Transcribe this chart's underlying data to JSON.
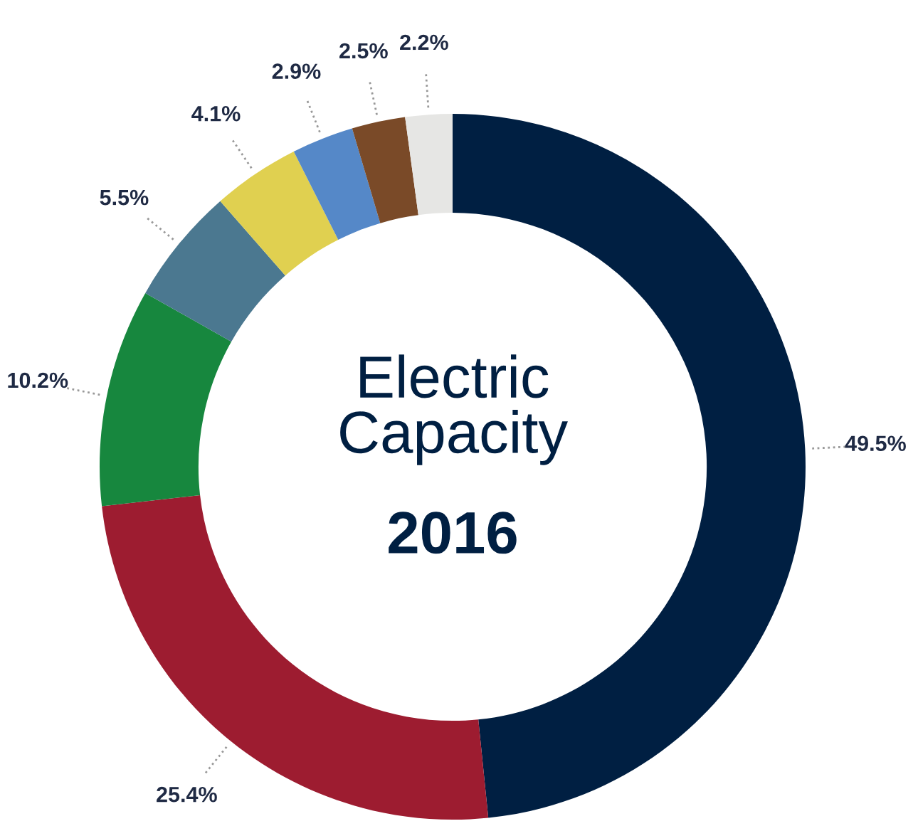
{
  "chart_data": {
    "type": "donut",
    "title": "Electric\nCapacity",
    "subtitle": "2016",
    "categories": [
      null,
      null,
      null,
      null,
      null,
      null,
      null,
      null
    ],
    "values": [
      49.5,
      25.4,
      10.2,
      5.5,
      4.1,
      2.9,
      2.5,
      2.2
    ],
    "value_labels": [
      "49.5%",
      "25.4%",
      "10.2%",
      "5.5%",
      "4.1%",
      "2.9%",
      "2.5%",
      "2.2%"
    ],
    "colors": [
      "#001f42",
      "#9d1c30",
      "#17873e",
      "#4b7890",
      "#e0d050",
      "#5588c8",
      "#7a4a28",
      "#e6e6e4"
    ],
    "legend": false
  }
}
